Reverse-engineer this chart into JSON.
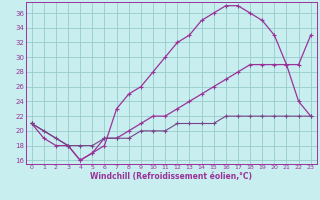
{
  "xlabel": "Windchill (Refroidissement éolien,°C)",
  "background_color": "#c8eef0",
  "grid_color": "#99cccc",
  "line_color": "#993399",
  "line_color2": "#774488",
  "xlim": [
    -0.5,
    23.5
  ],
  "ylim": [
    15.5,
    37.5
  ],
  "xticks": [
    0,
    1,
    2,
    3,
    4,
    5,
    6,
    7,
    8,
    9,
    10,
    11,
    12,
    13,
    14,
    15,
    16,
    17,
    18,
    19,
    20,
    21,
    22,
    23
  ],
  "yticks": [
    16,
    18,
    20,
    22,
    24,
    26,
    28,
    30,
    32,
    34,
    36
  ],
  "line1_x": [
    0,
    1,
    2,
    3,
    4,
    5,
    6,
    7,
    8,
    9,
    10,
    11,
    12,
    13,
    14,
    15,
    16,
    17,
    18,
    19,
    20,
    21,
    22,
    23
  ],
  "line1_y": [
    21,
    19,
    18,
    18,
    16,
    17,
    18,
    23,
    25,
    26,
    28,
    30,
    32,
    33,
    35,
    36,
    37,
    37,
    36,
    35,
    33,
    29,
    24,
    22
  ],
  "line2_x": [
    0,
    3,
    4,
    5,
    6,
    7,
    8,
    9,
    10,
    11,
    12,
    13,
    14,
    15,
    16,
    17,
    18,
    19,
    20,
    21,
    22,
    23
  ],
  "line2_y": [
    21,
    18,
    16,
    17,
    19,
    19,
    20,
    21,
    22,
    22,
    23,
    24,
    25,
    26,
    27,
    28,
    29,
    29,
    29,
    29,
    29,
    33
  ],
  "line3_x": [
    0,
    1,
    2,
    3,
    4,
    5,
    6,
    7,
    8,
    9,
    10,
    11,
    12,
    13,
    14,
    15,
    16,
    17,
    18,
    19,
    20,
    21,
    22,
    23
  ],
  "line3_y": [
    21,
    20,
    19,
    18,
    18,
    18,
    19,
    19,
    19,
    20,
    20,
    20,
    21,
    21,
    21,
    21,
    22,
    22,
    22,
    22,
    22,
    22,
    22,
    22
  ]
}
